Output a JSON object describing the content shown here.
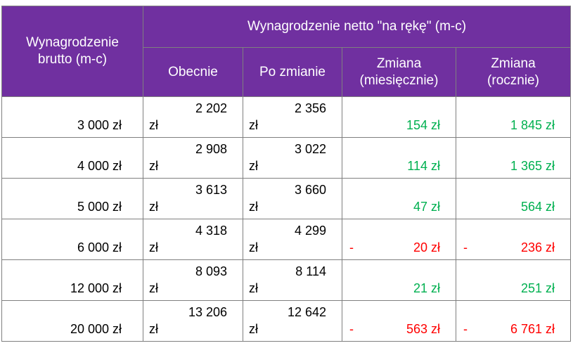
{
  "header": {
    "col_brutto": "Wynagrodzenie brutto (m-c)",
    "group_netto": "Wynagrodzenie netto \"na rękę\" (m-c)",
    "col_now": "Obecnie",
    "col_after": "Po zmianie",
    "col_monthly_1": "Zmiana",
    "col_monthly_2": "(miesięcznie)",
    "col_yearly_1": "Zmiana",
    "col_yearly_2": "(rocznie)"
  },
  "colors": {
    "header_bg": "#7030a0",
    "positive": "#00b050",
    "negative": "#ff0000"
  },
  "unit": "zł",
  "rows": [
    {
      "brutto": "3 000 zł",
      "now": "2 202",
      "after": "2 356",
      "monthly": "154 zł",
      "yearly": "1 845 zł",
      "sign": ""
    },
    {
      "brutto": "4 000 zł",
      "now": "2 908",
      "after": "3 022",
      "monthly": "114 zł",
      "yearly": "1 365 zł",
      "sign": ""
    },
    {
      "brutto": "5 000 zł",
      "now": "3 613",
      "after": "3 660",
      "monthly": "47 zł",
      "yearly": "564 zł",
      "sign": ""
    },
    {
      "brutto": "6 000 zł",
      "now": "4 318",
      "after": "4 299",
      "monthly": "20 zł",
      "yearly": "236 zł",
      "sign": "-"
    },
    {
      "brutto": "12 000 zł",
      "now": "8 093",
      "after": "8 114",
      "monthly": "21 zł",
      "yearly": "251 zł",
      "sign": ""
    },
    {
      "brutto": "20 000 zł",
      "now": "13 206",
      "after": "12 642",
      "monthly": "563 zł",
      "yearly": "6 761 zł",
      "sign": "-"
    }
  ]
}
